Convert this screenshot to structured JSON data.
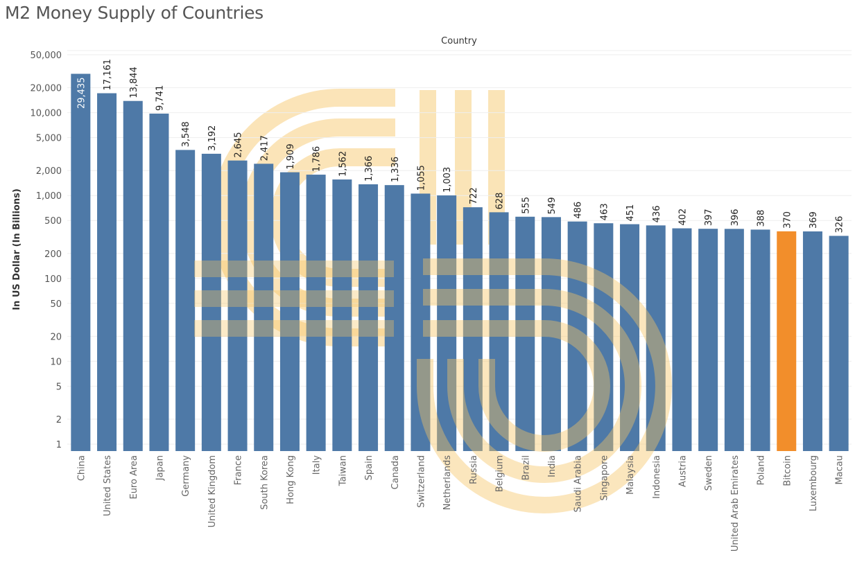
{
  "title": "M2 Money Supply of Countries",
  "chart_data": {
    "type": "bar",
    "title": "M2 Money Supply of Countries",
    "header": "Country",
    "xlabel": "",
    "ylabel": "In US Dollar (In Billions)",
    "yscale": "log",
    "ylim": [
      1,
      50000
    ],
    "yticks": [
      1,
      2,
      5,
      10,
      20,
      50,
      100,
      200,
      500,
      1000,
      2000,
      5000,
      10000,
      20000,
      50000
    ],
    "ytick_labels": [
      "1",
      "2",
      "5",
      "10",
      "20",
      "50",
      "100",
      "200",
      "500",
      "1,000",
      "2,000",
      "5,000",
      "10,000",
      "20,000",
      "50,000"
    ],
    "grid": true,
    "categories": [
      "China",
      "United States",
      "Euro Area",
      "Japan",
      "Germany",
      "United Kingdom",
      "France",
      "South Korea",
      "Hong Kong",
      "Italy",
      "Taiwan",
      "Spain",
      "Canada",
      "Switzerland",
      "Netherlands",
      "Russia",
      "Belgium",
      "Brazil",
      "India",
      "Saudi Arabia",
      "Singapore",
      "Malaysia",
      "Indonesia",
      "Austria",
      "Sweden",
      "United Arab Emirates",
      "Poland",
      "Bitcoin",
      "Luxembourg",
      "Macau"
    ],
    "values": [
      29435,
      17161,
      13844,
      9741,
      3548,
      3192,
      2645,
      2417,
      1909,
      1786,
      1562,
      1366,
      1336,
      1055,
      1003,
      722,
      628,
      555,
      549,
      486,
      463,
      451,
      436,
      402,
      397,
      396,
      388,
      370,
      369,
      326
    ],
    "value_labels": [
      "29,435",
      "17,161",
      "13,844",
      "9,741",
      "3,548",
      "3,192",
      "2,645",
      "2,417",
      "1,909",
      "1,786",
      "1,562",
      "1,366",
      "1,336",
      "1,055",
      "1,003",
      "722",
      "628",
      "555",
      "549",
      "486",
      "463",
      "451",
      "436",
      "402",
      "397",
      "396",
      "388",
      "370",
      "369",
      "326"
    ],
    "highlight_category": "Bitcoin",
    "colors": {
      "bar": "#4e79a7",
      "highlight": "#f28e2b",
      "grid": "#eeeeee",
      "watermark": "#f6c461"
    }
  }
}
